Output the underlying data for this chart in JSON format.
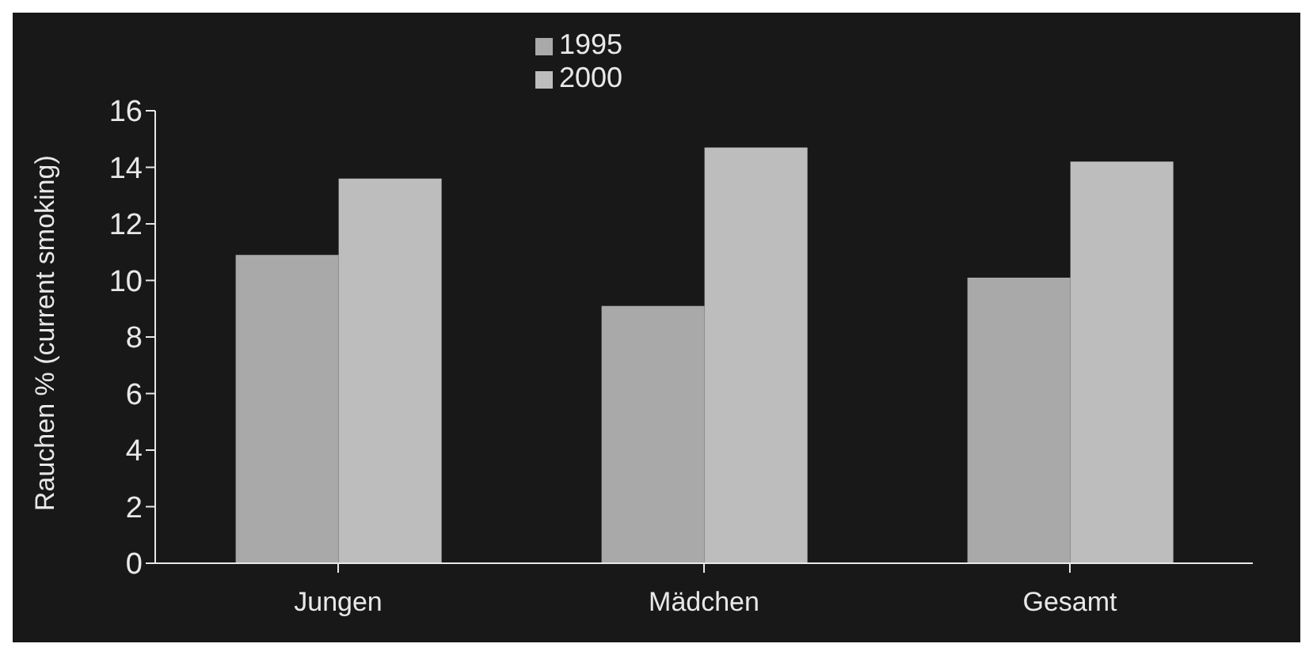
{
  "chart_data": {
    "type": "bar",
    "ylabel": "Rauchen % (current smoking)",
    "categories": [
      "Jungen",
      "Mädchen",
      "Gesamt"
    ],
    "series": [
      {
        "name": "1995",
        "color": "#a9a9a9",
        "values": [
          10.9,
          9.1,
          10.1
        ]
      },
      {
        "name": "2000",
        "color": "#bdbdbd",
        "values": [
          13.6,
          14.7,
          14.2
        ]
      }
    ],
    "ylim": [
      0,
      16
    ],
    "yticks": [
      0,
      2,
      4,
      6,
      8,
      10,
      12,
      14,
      16
    ],
    "legend": "top",
    "grid": false
  }
}
